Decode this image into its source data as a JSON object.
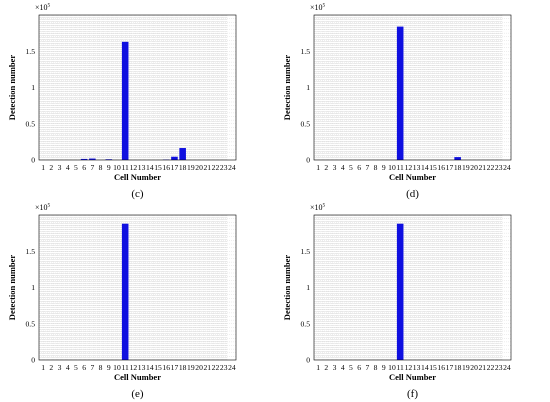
{
  "colors": {
    "bar": "#0f0fe0",
    "grid": "#d4d4d4",
    "axis": "#000000"
  },
  "chart_data": [
    {
      "type": "bar",
      "panel_label": "(c)",
      "xlabel": "Cell Number",
      "ylabel": "Detection number",
      "categories": [
        "1",
        "2",
        "3",
        "4",
        "5",
        "6",
        "7",
        "8",
        "9",
        "10",
        "11",
        "12",
        "13",
        "14",
        "15",
        "16",
        "17",
        "18",
        "19",
        "20",
        "21",
        "22",
        "23",
        "24"
      ],
      "values": [
        0,
        0,
        0,
        0,
        0,
        1500,
        2000,
        0,
        1000,
        0,
        163000,
        0,
        0,
        0,
        0,
        500,
        4500,
        16500,
        0,
        0,
        0,
        0,
        0,
        0
      ],
      "ylim": [
        0,
        200000
      ],
      "yticks": [
        0,
        0.5,
        1,
        1.5
      ],
      "y_exponent_label": "×10",
      "y_exponent": "5",
      "grid": true
    },
    {
      "type": "bar",
      "panel_label": "(d)",
      "xlabel": "Cell Number",
      "ylabel": "Detection number",
      "categories": [
        "1",
        "2",
        "3",
        "4",
        "5",
        "6",
        "7",
        "8",
        "9",
        "10",
        "11",
        "12",
        "13",
        "14",
        "15",
        "16",
        "17",
        "18",
        "19",
        "20",
        "21",
        "22",
        "23",
        "24"
      ],
      "values": [
        0,
        0,
        0,
        0,
        0,
        0,
        0,
        0,
        0,
        0,
        184000,
        0,
        0,
        0,
        0,
        0,
        0,
        4000,
        0,
        0,
        0,
        0,
        0,
        0
      ],
      "ylim": [
        0,
        200000
      ],
      "yticks": [
        0,
        0.5,
        1,
        1.5
      ],
      "y_exponent_label": "×10",
      "y_exponent": "5",
      "grid": true
    },
    {
      "type": "bar",
      "panel_label": "(e)",
      "xlabel": "Cell Number",
      "ylabel": "Detection number",
      "categories": [
        "1",
        "2",
        "3",
        "4",
        "5",
        "6",
        "7",
        "8",
        "9",
        "10",
        "11",
        "12",
        "13",
        "14",
        "15",
        "16",
        "17",
        "18",
        "19",
        "20",
        "21",
        "22",
        "23",
        "24"
      ],
      "values": [
        0,
        0,
        0,
        0,
        0,
        0,
        0,
        0,
        0,
        0,
        188000,
        0,
        0,
        0,
        0,
        0,
        0,
        0,
        0,
        0,
        0,
        0,
        0,
        0
      ],
      "ylim": [
        0,
        200000
      ],
      "yticks": [
        0,
        0.5,
        1,
        1.5
      ],
      "y_exponent_label": "×10",
      "y_exponent": "5",
      "grid": true
    },
    {
      "type": "bar",
      "panel_label": "(f)",
      "xlabel": "Cell Number",
      "ylabel": "Detection number",
      "categories": [
        "1",
        "2",
        "3",
        "4",
        "5",
        "6",
        "7",
        "8",
        "9",
        "10",
        "11",
        "12",
        "13",
        "14",
        "15",
        "16",
        "17",
        "18",
        "19",
        "20",
        "21",
        "22",
        "23",
        "24"
      ],
      "values": [
        0,
        0,
        0,
        0,
        0,
        0,
        0,
        0,
        0,
        0,
        188000,
        0,
        0,
        0,
        0,
        0,
        0,
        0,
        0,
        0,
        0,
        0,
        0,
        0
      ],
      "ylim": [
        0,
        200000
      ],
      "yticks": [
        0,
        0.5,
        1,
        1.5
      ],
      "y_exponent_label": "×10",
      "y_exponent": "5",
      "grid": true
    }
  ]
}
